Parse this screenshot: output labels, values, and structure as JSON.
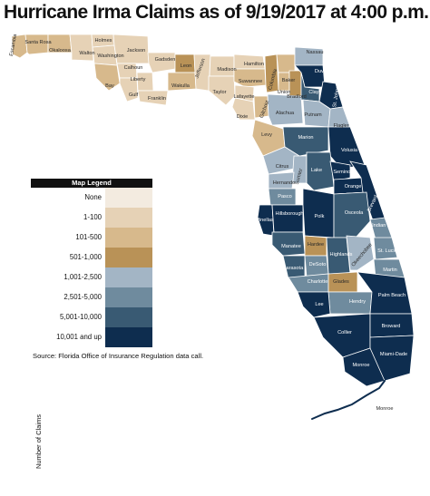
{
  "title": "Hurricane Irma Claims as of 9/19/2017 at 4:00 p.m.",
  "legend": {
    "title": "Map Legend",
    "axis_label": "Number of Claims",
    "bins": [
      {
        "label": "None",
        "color": "#f3ebe0"
      },
      {
        "label": "1-100",
        "color": "#e6d2b6"
      },
      {
        "label": "101-500",
        "color": "#d7b98c"
      },
      {
        "label": "501-1,000",
        "color": "#b99257"
      },
      {
        "label": "1,001-2,500",
        "color": "#a3b5c5"
      },
      {
        "label": "2,501-5,000",
        "color": "#6f8b9e"
      },
      {
        "label": "5,001-10,000",
        "color": "#395a73"
      },
      {
        "label": "10,001 and up",
        "color": "#0e2d4f"
      }
    ]
  },
  "source": "Source: Florida Office of Insurance Regulation data call.",
  "counties": [
    {
      "name": "Escambia",
      "bin": 2
    },
    {
      "name": "Santa Rosa",
      "bin": 2
    },
    {
      "name": "Okaloosa",
      "bin": 2
    },
    {
      "name": "Walton",
      "bin": 1
    },
    {
      "name": "Holmes",
      "bin": 1
    },
    {
      "name": "Washington",
      "bin": 1
    },
    {
      "name": "Bay",
      "bin": 2
    },
    {
      "name": "Jackson",
      "bin": 1
    },
    {
      "name": "Calhoun",
      "bin": 1
    },
    {
      "name": "Gulf",
      "bin": 1
    },
    {
      "name": "Liberty",
      "bin": 1
    },
    {
      "name": "Franklin",
      "bin": 1
    },
    {
      "name": "Gadsden",
      "bin": 1
    },
    {
      "name": "Leon",
      "bin": 3
    },
    {
      "name": "Wakulla",
      "bin": 2
    },
    {
      "name": "Jefferson",
      "bin": 1
    },
    {
      "name": "Madison",
      "bin": 1
    },
    {
      "name": "Taylor",
      "bin": 1
    },
    {
      "name": "Hamilton",
      "bin": 1
    },
    {
      "name": "Suwannee",
      "bin": 2
    },
    {
      "name": "Lafayette",
      "bin": 1
    },
    {
      "name": "Dixie",
      "bin": 1
    },
    {
      "name": "Columbia",
      "bin": 3
    },
    {
      "name": "Baker",
      "bin": 2
    },
    {
      "name": "Union",
      "bin": 2
    },
    {
      "name": "Bradford",
      "bin": 3
    },
    {
      "name": "Gilchrist",
      "bin": 2
    },
    {
      "name": "Alachua",
      "bin": 4
    },
    {
      "name": "Levy",
      "bin": 2
    },
    {
      "name": "Nassau",
      "bin": 4
    },
    {
      "name": "Duval",
      "bin": 7
    },
    {
      "name": "Clay",
      "bin": 6
    },
    {
      "name": "St. Johns",
      "bin": 7
    },
    {
      "name": "Putnam",
      "bin": 4
    },
    {
      "name": "Flagler",
      "bin": 4
    },
    {
      "name": "Marion",
      "bin": 6
    },
    {
      "name": "Volusia",
      "bin": 7
    },
    {
      "name": "Citrus",
      "bin": 4
    },
    {
      "name": "Sumter",
      "bin": 4
    },
    {
      "name": "Lake",
      "bin": 6
    },
    {
      "name": "Seminole",
      "bin": 7
    },
    {
      "name": "Hernando",
      "bin": 4
    },
    {
      "name": "Orange",
      "bin": 7
    },
    {
      "name": "Pasco",
      "bin": 5
    },
    {
      "name": "Brevard",
      "bin": 7
    },
    {
      "name": "Pinellas",
      "bin": 7
    },
    {
      "name": "Hillsborough",
      "bin": 7
    },
    {
      "name": "Polk",
      "bin": 7
    },
    {
      "name": "Osceola",
      "bin": 6
    },
    {
      "name": "Indian River",
      "bin": 5
    },
    {
      "name": "Manatee",
      "bin": 6
    },
    {
      "name": "Hardee",
      "bin": 3
    },
    {
      "name": "Highlands",
      "bin": 6
    },
    {
      "name": "Okeechobee",
      "bin": 4
    },
    {
      "name": "St. Lucie",
      "bin": 5
    },
    {
      "name": "Sarasota",
      "bin": 6
    },
    {
      "name": "DeSoto",
      "bin": 5
    },
    {
      "name": "Martin",
      "bin": 5
    },
    {
      "name": "Charlotte",
      "bin": 5
    },
    {
      "name": "Glades",
      "bin": 3
    },
    {
      "name": "Hendry",
      "bin": 5
    },
    {
      "name": "Palm Beach",
      "bin": 7
    },
    {
      "name": "Lee",
      "bin": 7
    },
    {
      "name": "Collier",
      "bin": 7
    },
    {
      "name": "Broward",
      "bin": 7
    },
    {
      "name": "Miami-Dade",
      "bin": 7
    },
    {
      "name": "Monroe",
      "bin": 7
    }
  ]
}
